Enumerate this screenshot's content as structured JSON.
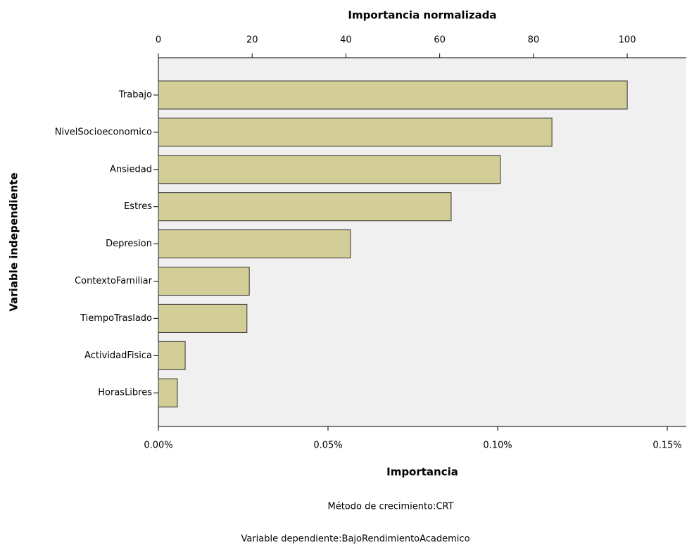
{
  "chart_data": {
    "type": "bar",
    "orientation": "horizontal",
    "x_label": "Importancia",
    "x2_label": "Importancia normalizada",
    "y_label": "Variable independiente",
    "footnotes": [
      "Método de crecimiento:CRT",
      "Variable dependiente:BajoRendimientoAcademico"
    ],
    "categories": [
      "Trabajo",
      "NivelSocioeconomico",
      "Ansiedad",
      "Estres",
      "Depresion",
      "ContextoFamiliar",
      "TiempoTraslado",
      "ActividadFisica",
      "HorasLibres"
    ],
    "values": [
      0.1382,
      0.116,
      0.1008,
      0.0863,
      0.0566,
      0.0268,
      0.0261,
      0.0079,
      0.0056
    ],
    "color": "#d3ce97",
    "xlim": [
      0,
      0.1556
    ],
    "xticks": [
      {
        "value": 0,
        "label": "0.00%"
      },
      {
        "value": 0.05,
        "label": "0.05%"
      },
      {
        "value": 0.1,
        "label": "0.10%"
      },
      {
        "value": 0.15,
        "label": "0.15%"
      }
    ],
    "x2lim": [
      0,
      112.6
    ],
    "x2ticks": [
      0,
      20,
      40,
      60,
      80,
      100
    ]
  }
}
